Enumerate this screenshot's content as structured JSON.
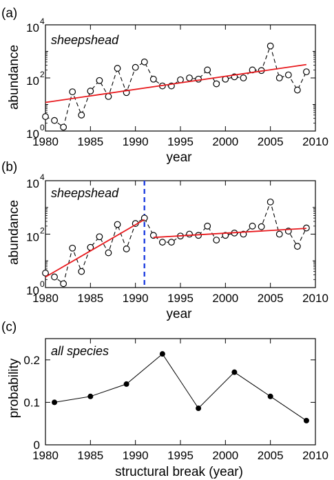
{
  "colors": {
    "axis": "#000000",
    "data": "#000000",
    "fit": "#e8181c",
    "break": "#1f3fe0"
  },
  "chart_data": [
    {
      "panel_label": "(a)",
      "type": "line",
      "annotation": "sheepshead",
      "xlabel": "year",
      "ylabel": "abundance",
      "yscale": "log",
      "xlim": [
        1980,
        2010
      ],
      "ylim": [
        1,
        10000
      ],
      "x_ticks": [
        "1980",
        "1985",
        "1990",
        "1995",
        "2000",
        "2005",
        "2010"
      ],
      "y_ticks": [
        {
          "base": "10",
          "exp": "0",
          "value": 1
        },
        {
          "base": "10",
          "exp": "2",
          "value": 100
        },
        {
          "base": "10",
          "exp": "4",
          "value": 10000
        }
      ],
      "series": [
        {
          "style": "dashed line with open circles",
          "x": [
            1980,
            1981,
            1982,
            1983,
            1984,
            1985,
            1986,
            1987,
            1988,
            1989,
            1990,
            1991,
            1992,
            1993,
            1994,
            1995,
            1996,
            1997,
            1998,
            1999,
            2000,
            2001,
            2002,
            2003,
            2004,
            2005,
            2006,
            2007,
            2008,
            2009
          ],
          "y": [
            3.5,
            2.5,
            1.4,
            30,
            4,
            32,
            80,
            20,
            230,
            28,
            250,
            400,
            90,
            50,
            50,
            85,
            100,
            90,
            200,
            60,
            90,
            110,
            100,
            200,
            190,
            1600,
            100,
            130,
            35,
            170
          ]
        },
        {
          "style": "solid red fit line",
          "x": [
            1980,
            2009
          ],
          "y": [
            12,
            320
          ]
        }
      ]
    },
    {
      "panel_label": "(b)",
      "type": "line",
      "annotation": "sheepshead",
      "xlabel": "year",
      "ylabel": "abundance",
      "yscale": "log",
      "xlim": [
        1980,
        2010
      ],
      "ylim": [
        1,
        10000
      ],
      "x_ticks": [
        "1980",
        "1985",
        "1990",
        "1995",
        "2000",
        "2005",
        "2010"
      ],
      "y_ticks": [
        {
          "base": "10",
          "exp": "0",
          "value": 1
        },
        {
          "base": "10",
          "exp": "2",
          "value": 100
        },
        {
          "base": "10",
          "exp": "4",
          "value": 10000
        }
      ],
      "break_year": 1991,
      "series": [
        {
          "style": "dashed line with open circles",
          "x": [
            1980,
            1981,
            1982,
            1983,
            1984,
            1985,
            1986,
            1987,
            1988,
            1989,
            1990,
            1991,
            1992,
            1993,
            1994,
            1995,
            1996,
            1997,
            1998,
            1999,
            2000,
            2001,
            2002,
            2003,
            2004,
            2005,
            2006,
            2007,
            2008,
            2009
          ],
          "y": [
            3.5,
            2.5,
            1.4,
            30,
            4,
            32,
            80,
            20,
            230,
            28,
            250,
            400,
            90,
            50,
            50,
            85,
            100,
            90,
            200,
            60,
            90,
            110,
            100,
            200,
            190,
            1600,
            100,
            130,
            35,
            170
          ]
        },
        {
          "style": "solid red fit segment before break",
          "x": [
            1980,
            1991
          ],
          "y": [
            2.5,
            350
          ]
        },
        {
          "style": "solid red fit segment after break",
          "x": [
            1992,
            2009
          ],
          "y": [
            75,
            165
          ]
        }
      ]
    },
    {
      "panel_label": "(c)",
      "type": "line",
      "annotation": "all species",
      "xlabel": "structural break (year)",
      "ylabel": "probability",
      "yscale": "linear",
      "xlim": [
        1980,
        2010
      ],
      "ylim": [
        0,
        0.25
      ],
      "x_ticks": [
        "1980",
        "1985",
        "1990",
        "1995",
        "2000",
        "2005",
        "2010"
      ],
      "y_ticks": [
        "0",
        "0.1",
        "0.2"
      ],
      "series": [
        {
          "style": "solid line with filled circles",
          "x": [
            1981,
            1985,
            1989,
            1993,
            1997,
            2001,
            2005,
            2009
          ],
          "y": [
            0.1,
            0.114,
            0.143,
            0.214,
            0.086,
            0.171,
            0.114,
            0.057
          ]
        }
      ]
    }
  ]
}
